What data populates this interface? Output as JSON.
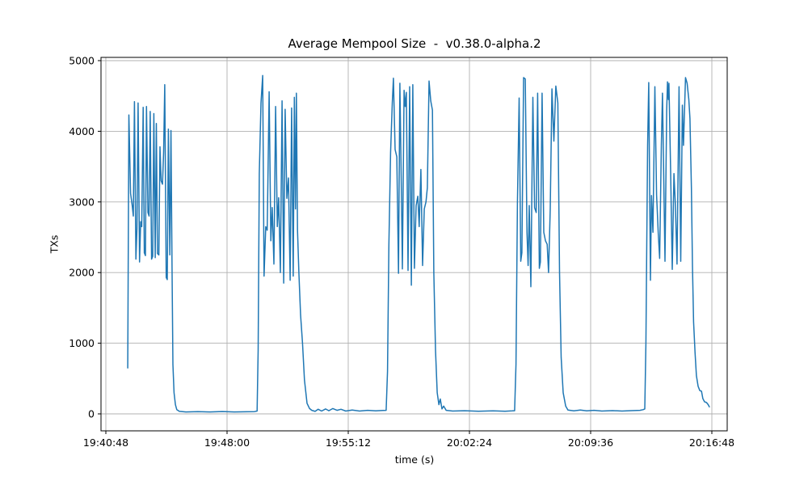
{
  "chart_data": {
    "type": "line",
    "title": "Average Mempool Size  -  v0.38.0-alpha.2",
    "xlabel": "time (s)",
    "ylabel": "TXs",
    "x_tick_labels": [
      "19:40:48",
      "19:48:00",
      "19:55:12",
      "20:02:24",
      "20:09:36",
      "20:16:48"
    ],
    "x_tick_seconds": [
      0,
      432,
      864,
      1296,
      1728,
      2160
    ],
    "y_ticks": [
      0,
      1000,
      2000,
      3000,
      4000,
      5000
    ],
    "ylim": [
      0,
      5000
    ],
    "xlim_seconds": [
      -17,
      2215
    ],
    "grid": true,
    "legend": "none",
    "background": "#ffffff",
    "line_color": "#1f77b4",
    "grid_color": "#b0b0b0",
    "spine_color": "#000000",
    "series": [
      {
        "name": "avg-mempool-size-txs",
        "points_format": "[seconds_since_19:40:48, txs]",
        "points": [
          [
            78,
            650
          ],
          [
            82,
            4230
          ],
          [
            88,
            3120
          ],
          [
            94,
            2950
          ],
          [
            98,
            2800
          ],
          [
            102,
            4420
          ],
          [
            107,
            2190
          ],
          [
            111,
            2620
          ],
          [
            115,
            4400
          ],
          [
            120,
            2150
          ],
          [
            124,
            2720
          ],
          [
            128,
            2650
          ],
          [
            133,
            4340
          ],
          [
            137,
            2280
          ],
          [
            141,
            2240
          ],
          [
            145,
            4350
          ],
          [
            150,
            2850
          ],
          [
            154,
            2800
          ],
          [
            158,
            4280
          ],
          [
            163,
            2190
          ],
          [
            167,
            2230
          ],
          [
            171,
            4250
          ],
          [
            176,
            2210
          ],
          [
            180,
            4110
          ],
          [
            184,
            2270
          ],
          [
            189,
            2250
          ],
          [
            193,
            3780
          ],
          [
            197,
            3300
          ],
          [
            202,
            3250
          ],
          [
            206,
            3700
          ],
          [
            210,
            4660
          ],
          [
            215,
            1930
          ],
          [
            219,
            1900
          ],
          [
            223,
            4030
          ],
          [
            228,
            2250
          ],
          [
            232,
            4010
          ],
          [
            236,
            2100
          ],
          [
            239,
            700
          ],
          [
            243,
            300
          ],
          [
            248,
            130
          ],
          [
            253,
            60
          ],
          [
            262,
            35
          ],
          [
            285,
            28
          ],
          [
            328,
            32
          ],
          [
            371,
            28
          ],
          [
            415,
            33
          ],
          [
            458,
            28
          ],
          [
            501,
            30
          ],
          [
            530,
            32
          ],
          [
            539,
            40
          ],
          [
            543,
            900
          ],
          [
            547,
            3400
          ],
          [
            553,
            4400
          ],
          [
            559,
            4790
          ],
          [
            564,
            1950
          ],
          [
            570,
            2650
          ],
          [
            575,
            2600
          ],
          [
            582,
            4560
          ],
          [
            588,
            2450
          ],
          [
            593,
            2920
          ],
          [
            599,
            2120
          ],
          [
            605,
            4350
          ],
          [
            611,
            2650
          ],
          [
            616,
            3060
          ],
          [
            622,
            2000
          ],
          [
            628,
            4430
          ],
          [
            634,
            1850
          ],
          [
            639,
            4310
          ],
          [
            645,
            3050
          ],
          [
            651,
            3340
          ],
          [
            657,
            1890
          ],
          [
            662,
            4330
          ],
          [
            668,
            1950
          ],
          [
            672,
            4480
          ],
          [
            676,
            2900
          ],
          [
            679,
            4540
          ],
          [
            683,
            2600
          ],
          [
            688,
            2000
          ],
          [
            694,
            1400
          ],
          [
            701,
            1000
          ],
          [
            708,
            480
          ],
          [
            717,
            150
          ],
          [
            726,
            75
          ],
          [
            734,
            50
          ],
          [
            746,
            35
          ],
          [
            757,
            65
          ],
          [
            769,
            40
          ],
          [
            783,
            70
          ],
          [
            795,
            45
          ],
          [
            809,
            75
          ],
          [
            824,
            50
          ],
          [
            838,
            65
          ],
          [
            855,
            40
          ],
          [
            878,
            55
          ],
          [
            904,
            40
          ],
          [
            933,
            50
          ],
          [
            962,
            42
          ],
          [
            988,
            48
          ],
          [
            999,
            50
          ],
          [
            1004,
            600
          ],
          [
            1009,
            2400
          ],
          [
            1015,
            3700
          ],
          [
            1021,
            4400
          ],
          [
            1025,
            4750
          ],
          [
            1031,
            3740
          ],
          [
            1037,
            3640
          ],
          [
            1043,
            1990
          ],
          [
            1048,
            4680
          ],
          [
            1053,
            3300
          ],
          [
            1057,
            2050
          ],
          [
            1063,
            4580
          ],
          [
            1067,
            4350
          ],
          [
            1071,
            4550
          ],
          [
            1077,
            2030
          ],
          [
            1083,
            4630
          ],
          [
            1089,
            1820
          ],
          [
            1094,
            4660
          ],
          [
            1100,
            2060
          ],
          [
            1106,
            2950
          ],
          [
            1112,
            3080
          ],
          [
            1117,
            2650
          ],
          [
            1123,
            3460
          ],
          [
            1129,
            2100
          ],
          [
            1135,
            2900
          ],
          [
            1141,
            3000
          ],
          [
            1146,
            3200
          ],
          [
            1152,
            4710
          ],
          [
            1158,
            4430
          ],
          [
            1164,
            4300
          ],
          [
            1169,
            2000
          ],
          [
            1175,
            900
          ],
          [
            1181,
            300
          ],
          [
            1187,
            130
          ],
          [
            1192,
            210
          ],
          [
            1198,
            70
          ],
          [
            1204,
            110
          ],
          [
            1213,
            50
          ],
          [
            1236,
            40
          ],
          [
            1279,
            45
          ],
          [
            1328,
            38
          ],
          [
            1380,
            44
          ],
          [
            1423,
            38
          ],
          [
            1449,
            42
          ],
          [
            1457,
            45
          ],
          [
            1462,
            700
          ],
          [
            1467,
            3000
          ],
          [
            1473,
            4470
          ],
          [
            1479,
            2160
          ],
          [
            1483,
            2280
          ],
          [
            1489,
            4760
          ],
          [
            1495,
            4740
          ],
          [
            1501,
            2570
          ],
          [
            1505,
            2100
          ],
          [
            1509,
            2950
          ],
          [
            1515,
            1800
          ],
          [
            1522,
            4480
          ],
          [
            1528,
            2920
          ],
          [
            1534,
            2850
          ],
          [
            1539,
            4540
          ],
          [
            1545,
            2060
          ],
          [
            1549,
            2150
          ],
          [
            1555,
            4540
          ],
          [
            1561,
            2570
          ],
          [
            1567,
            2450
          ],
          [
            1573,
            2400
          ],
          [
            1578,
            2000
          ],
          [
            1584,
            2900
          ],
          [
            1590,
            4600
          ],
          [
            1597,
            3860
          ],
          [
            1604,
            4640
          ],
          [
            1611,
            4400
          ],
          [
            1617,
            2000
          ],
          [
            1623,
            800
          ],
          [
            1630,
            300
          ],
          [
            1639,
            110
          ],
          [
            1647,
            55
          ],
          [
            1668,
            42
          ],
          [
            1691,
            55
          ],
          [
            1714,
            42
          ],
          [
            1740,
            50
          ],
          [
            1768,
            40
          ],
          [
            1806,
            46
          ],
          [
            1840,
            40
          ],
          [
            1875,
            46
          ],
          [
            1904,
            50
          ],
          [
            1915,
            60
          ],
          [
            1921,
            70
          ],
          [
            1925,
            1000
          ],
          [
            1931,
            3800
          ],
          [
            1935,
            4690
          ],
          [
            1941,
            1890
          ],
          [
            1945,
            3090
          ],
          [
            1950,
            2570
          ],
          [
            1957,
            4630
          ],
          [
            1963,
            3100
          ],
          [
            1969,
            2550
          ],
          [
            1974,
            2200
          ],
          [
            1980,
            3800
          ],
          [
            1984,
            4540
          ],
          [
            1993,
            2160
          ],
          [
            1999,
            4300
          ],
          [
            2002,
            4700
          ],
          [
            2005,
            4450
          ],
          [
            2007,
            4680
          ],
          [
            2013,
            3430
          ],
          [
            2019,
            2045
          ],
          [
            2025,
            3400
          ],
          [
            2030,
            2950
          ],
          [
            2036,
            2120
          ],
          [
            2043,
            4630
          ],
          [
            2049,
            2160
          ],
          [
            2055,
            4370
          ],
          [
            2059,
            3800
          ],
          [
            2066,
            4760
          ],
          [
            2072,
            4680
          ],
          [
            2078,
            4450
          ],
          [
            2082,
            4180
          ],
          [
            2087,
            3200
          ],
          [
            2091,
            2100
          ],
          [
            2095,
            1300
          ],
          [
            2100,
            870
          ],
          [
            2105,
            540
          ],
          [
            2111,
            390
          ],
          [
            2117,
            330
          ],
          [
            2123,
            320
          ],
          [
            2128,
            215
          ],
          [
            2134,
            170
          ],
          [
            2141,
            160
          ],
          [
            2147,
            130
          ],
          [
            2151,
            100
          ]
        ]
      }
    ]
  }
}
